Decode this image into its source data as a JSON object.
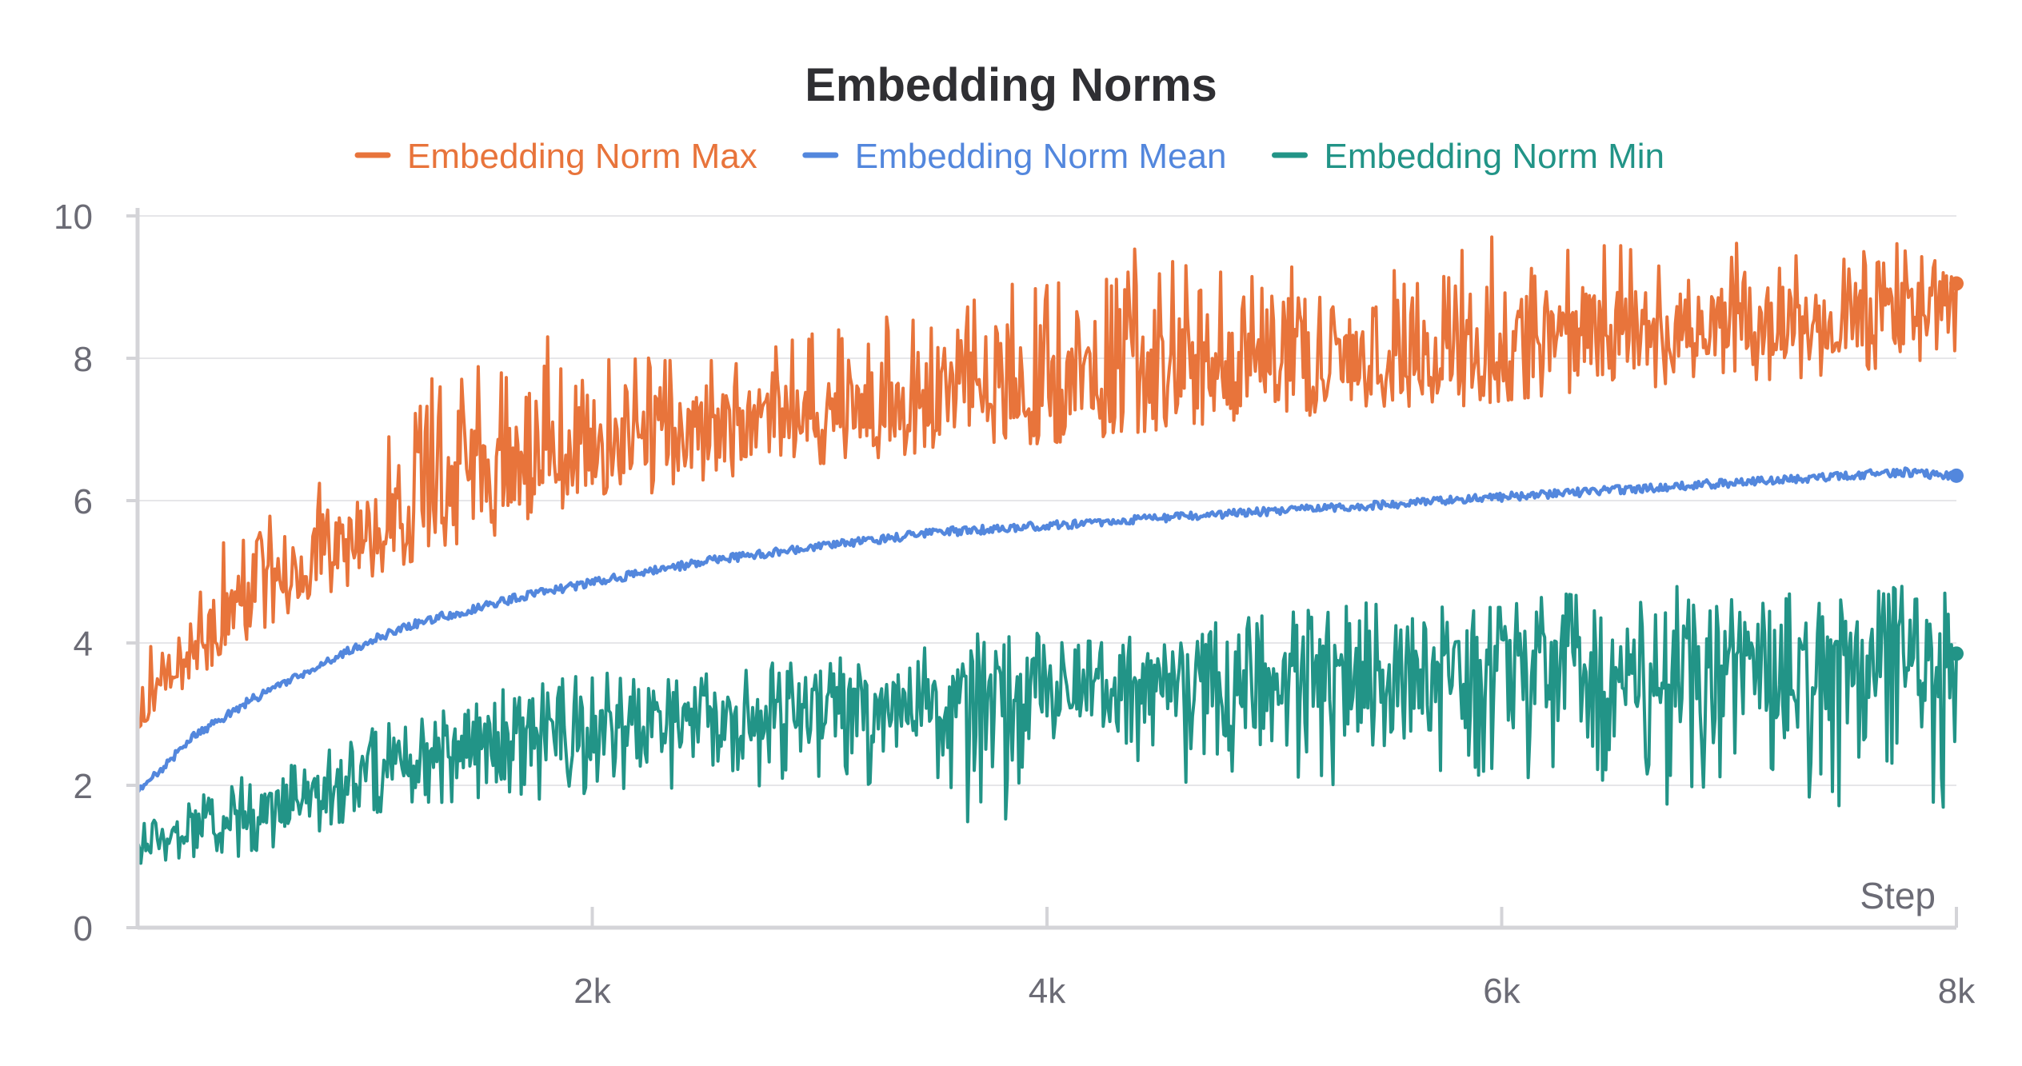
{
  "chart_data": {
    "type": "line",
    "title": "Embedding Norms",
    "xlabel": "Step",
    "ylabel": "",
    "xlim": [
      0,
      8000
    ],
    "ylim": [
      0,
      10
    ],
    "x_ticks": [
      {
        "value": 2000,
        "label": "2k"
      },
      {
        "value": 4000,
        "label": "4k"
      },
      {
        "value": 6000,
        "label": "6k"
      },
      {
        "value": 8000,
        "label": "8k"
      }
    ],
    "y_ticks": [
      {
        "value": 0,
        "label": "0"
      },
      {
        "value": 2,
        "label": "2"
      },
      {
        "value": 4,
        "label": "4"
      },
      {
        "value": 6,
        "label": "6"
      },
      {
        "value": 8,
        "label": "8"
      },
      {
        "value": 10,
        "label": "10"
      }
    ],
    "grid": true,
    "legend_position": "top-center",
    "series": [
      {
        "name": "Embedding Norm Max",
        "color": "#e8743b",
        "x": [
          0,
          250,
          500,
          750,
          1000,
          1250,
          1500,
          1750,
          2000,
          2250,
          2500,
          2750,
          3000,
          3250,
          3500,
          3750,
          4000,
          4250,
          4500,
          4750,
          5000,
          5250,
          5500,
          5750,
          6000,
          6250,
          6500,
          6750,
          7000,
          7250,
          7500,
          7750,
          8000
        ],
        "values": [
          2.8,
          4.1,
          4.6,
          5.1,
          5.6,
          5.9,
          6.2,
          6.6,
          6.7,
          6.8,
          6.9,
          7.1,
          7.3,
          7.3,
          7.4,
          7.5,
          7.6,
          7.7,
          7.8,
          7.8,
          7.9,
          8.0,
          8.0,
          8.1,
          8.2,
          8.2,
          8.3,
          8.4,
          8.4,
          8.5,
          8.5,
          8.6,
          9.05
        ],
        "peak_values": [
          3.6,
          5.1,
          5.7,
          6.4,
          6.7,
          7.7,
          7.9,
          8.3,
          8.3,
          8.0,
          8.1,
          8.1,
          8.4,
          8.9,
          8.6,
          9.0,
          9.1,
          9.5,
          9.7,
          9.2,
          9.4,
          9.4,
          9.2,
          9.6,
          10.2,
          9.5,
          9.6,
          9.4,
          9.7,
          9.8,
          9.8,
          9.6,
          9.4
        ],
        "trough_values": [
          2.8,
          3.5,
          4.1,
          4.6,
          4.9,
          5.2,
          5.4,
          5.8,
          6.0,
          6.1,
          6.3,
          6.4,
          6.5,
          6.6,
          6.7,
          6.8,
          6.8,
          6.9,
          7.0,
          7.1,
          7.2,
          7.2,
          7.3,
          7.3,
          7.4,
          7.5,
          7.6,
          7.6,
          7.7,
          7.7,
          7.8,
          7.9,
          8.0
        ]
      },
      {
        "name": "Embedding Norm Mean",
        "color": "#5387dd",
        "x": [
          0,
          250,
          500,
          750,
          1000,
          1250,
          1500,
          1750,
          2000,
          2250,
          2500,
          2750,
          3000,
          3250,
          3500,
          3750,
          4000,
          4250,
          4500,
          4750,
          5000,
          5250,
          5500,
          5750,
          6000,
          6250,
          6500,
          6750,
          7000,
          7250,
          7500,
          7750,
          8000
        ],
        "values": [
          1.9,
          2.7,
          3.2,
          3.6,
          4.0,
          4.3,
          4.5,
          4.7,
          4.85,
          5.0,
          5.15,
          5.25,
          5.35,
          5.45,
          5.55,
          5.6,
          5.65,
          5.7,
          5.75,
          5.8,
          5.85,
          5.9,
          5.95,
          6.0,
          6.05,
          6.1,
          6.15,
          6.2,
          6.25,
          6.3,
          6.35,
          6.4,
          6.35
        ]
      },
      {
        "name": "Embedding Norm Min",
        "color": "#229487",
        "x": [
          0,
          250,
          500,
          750,
          1000,
          1250,
          1500,
          1750,
          2000,
          2250,
          2500,
          2750,
          3000,
          3250,
          3500,
          3750,
          4000,
          4250,
          4500,
          4750,
          5000,
          5250,
          5500,
          5750,
          6000,
          6250,
          6500,
          6750,
          7000,
          7250,
          7500,
          7750,
          8000
        ],
        "values": [
          1.2,
          1.4,
          1.6,
          1.9,
          2.2,
          2.4,
          2.5,
          2.6,
          2.7,
          2.8,
          2.9,
          3.0,
          3.0,
          3.1,
          3.2,
          3.2,
          3.3,
          3.3,
          3.4,
          3.4,
          3.5,
          3.5,
          3.5,
          3.6,
          3.6,
          3.6,
          3.6,
          3.7,
          3.7,
          3.7,
          3.7,
          3.75,
          3.85
        ],
        "peak_values": [
          1.5,
          1.8,
          2.2,
          2.5,
          2.9,
          3.0,
          3.3,
          3.4,
          3.6,
          3.5,
          3.6,
          3.7,
          3.8,
          3.9,
          4.0,
          4.3,
          4.1,
          4.0,
          4.2,
          4.3,
          4.4,
          4.5,
          4.6,
          4.5,
          4.5,
          4.7,
          4.6,
          4.8,
          4.7,
          4.7,
          4.6,
          4.8,
          4.7
        ],
        "trough_values": [
          0.9,
          1.0,
          1.0,
          1.3,
          1.6,
          1.7,
          1.8,
          1.8,
          1.9,
          2.0,
          1.9,
          2.0,
          2.1,
          2.0,
          2.1,
          1.0,
          2.2,
          2.2,
          2.0,
          2.1,
          2.2,
          2.0,
          2.3,
          2.2,
          2.0,
          1.8,
          2.1,
          1.7,
          2.2,
          2.0,
          1.6,
          2.0,
          1.6
        ]
      }
    ]
  }
}
